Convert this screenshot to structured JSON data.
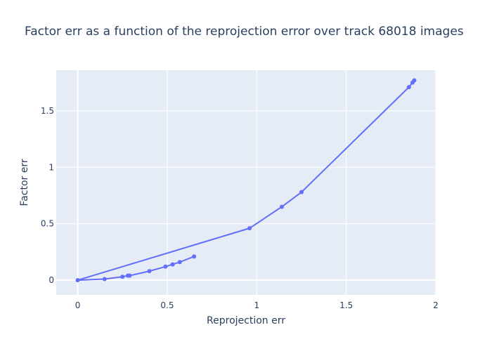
{
  "chart_data": {
    "type": "line",
    "title": "Factor err as a function of the reprojection error over track 68018 images",
    "xlabel": "Reprojection err",
    "ylabel": "Factor err",
    "xlim": [
      -0.12,
      2.0
    ],
    "ylim": [
      -0.13,
      1.86
    ],
    "x_ticks": [
      0,
      0.5,
      1,
      1.5,
      2
    ],
    "x_tick_labels": [
      "0",
      "0.5",
      "1",
      "1.5",
      "2"
    ],
    "y_ticks": [
      0,
      0.5,
      1,
      1.5
    ],
    "y_tick_labels": [
      "0",
      "0.5",
      "1",
      "1.5"
    ],
    "grid": true,
    "colors": {
      "plot_bg": "#e5ecf6",
      "grid": "#ffffff",
      "line": "#636efa",
      "text": "#2a3f5f"
    },
    "series": [
      {
        "mode": "lines+markers",
        "x": [
          0.65,
          0.57,
          0.53,
          0.49,
          0.4,
          0.29,
          0.28,
          0.25,
          0.15,
          0.0,
          0.96,
          1.14,
          1.25,
          1.85,
          1.87,
          1.88
        ],
        "y": [
          0.21,
          0.16,
          0.14,
          0.12,
          0.08,
          0.04,
          0.04,
          0.03,
          0.01,
          0.0,
          0.46,
          0.65,
          0.78,
          1.71,
          1.75,
          1.77
        ]
      }
    ]
  }
}
